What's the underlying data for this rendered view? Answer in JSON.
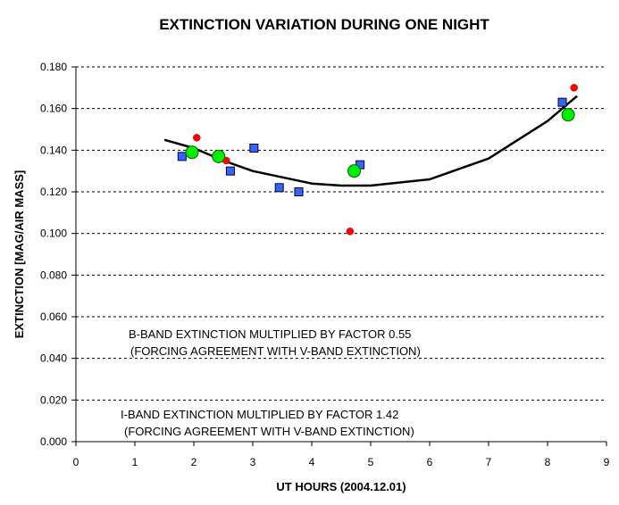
{
  "chart_data": {
    "type": "scatter",
    "title": "EXTINCTION VARIATION DURING ONE NIGHT",
    "xlabel": "UT HOURS (2004.12.01)",
    "ylabel": "EXTINCTION [MAG/AIR MASS]",
    "xlim": [
      0,
      9
    ],
    "ylim": [
      0,
      0.18
    ],
    "x_ticks": [
      "0",
      "1",
      "2",
      "3",
      "4",
      "5",
      "6",
      "7",
      "8",
      "9"
    ],
    "y_ticks": [
      "0.000",
      "0.020",
      "0.040",
      "0.060",
      "0.080",
      "0.100",
      "0.120",
      "0.140",
      "0.160",
      "0.180"
    ],
    "grid": "horizontal dashed",
    "annotations": [
      "B-BAND EXTINCTION MULTIPLIED BY FACTOR 0.55",
      "(FORCING AGREEMENT WITH V-BAND EXTINCTION)",
      "I-BAND EXTINCTION MULTIPLIED BY FACTOR 1.42",
      "(FORCING AGREEMENT WITH V-BAND EXTINCTION)"
    ],
    "series": [
      {
        "marker": "blue-square",
        "color": "#3366ff",
        "points": [
          [
            1.8,
            0.137
          ],
          [
            2.62,
            0.13
          ],
          [
            3.02,
            0.141
          ],
          [
            3.45,
            0.122
          ],
          [
            3.78,
            0.12
          ],
          [
            4.82,
            0.133
          ],
          [
            8.25,
            0.163
          ]
        ]
      },
      {
        "marker": "red-circle",
        "color": "#ff0000",
        "points": [
          [
            2.05,
            0.146
          ],
          [
            2.55,
            0.135
          ],
          [
            4.65,
            0.101
          ],
          [
            8.45,
            0.17
          ]
        ]
      },
      {
        "marker": "green-circle",
        "color": "#00ee00",
        "points": [
          [
            1.97,
            0.139
          ],
          [
            2.42,
            0.137
          ],
          [
            4.72,
            0.13
          ],
          [
            8.35,
            0.157
          ]
        ]
      },
      {
        "marker": "trend-line",
        "color": "#000000",
        "points": [
          [
            1.5,
            0.145
          ],
          [
            2.0,
            0.141
          ],
          [
            2.5,
            0.135
          ],
          [
            3.0,
            0.13
          ],
          [
            3.5,
            0.127
          ],
          [
            4.0,
            0.124
          ],
          [
            4.5,
            0.123
          ],
          [
            5.0,
            0.123
          ],
          [
            6.0,
            0.126
          ],
          [
            7.0,
            0.136
          ],
          [
            8.0,
            0.154
          ],
          [
            8.5,
            0.166
          ]
        ]
      }
    ]
  }
}
